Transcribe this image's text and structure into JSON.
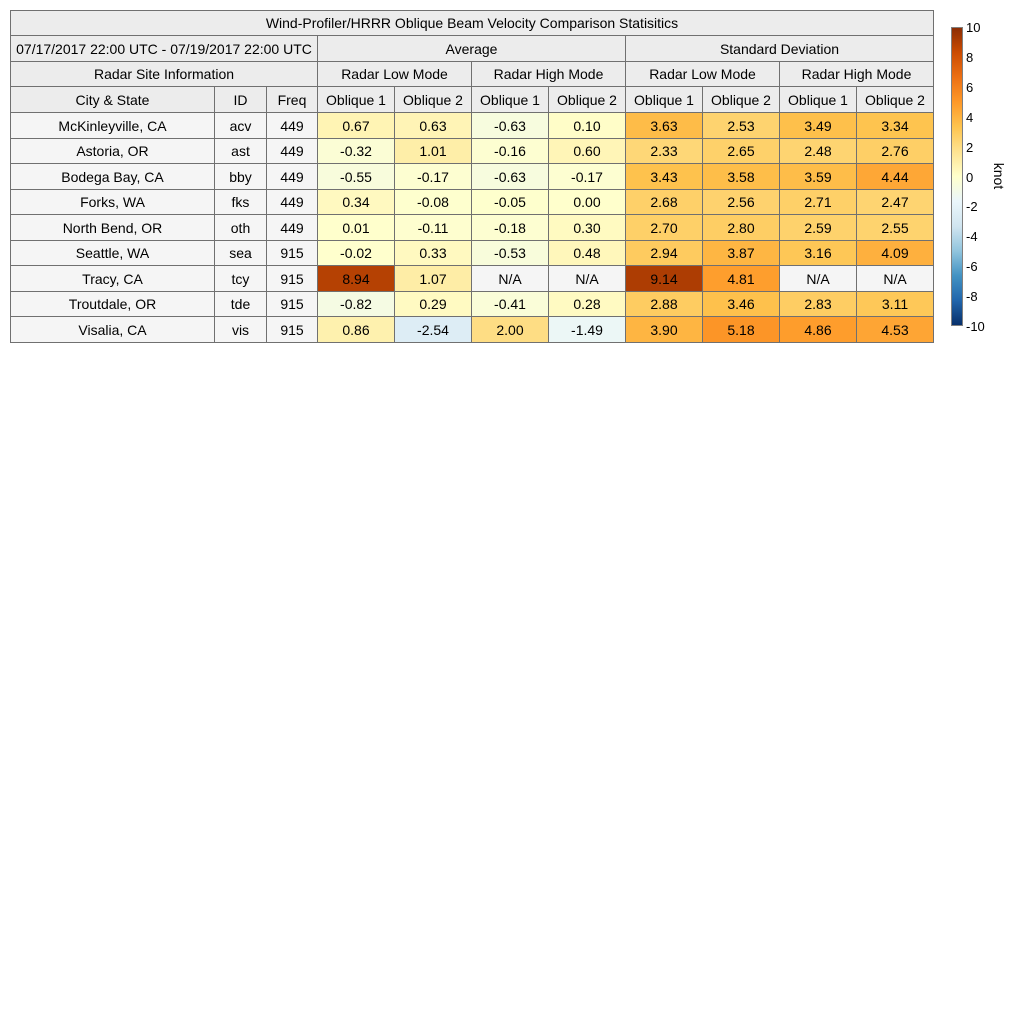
{
  "chart_data": {
    "type": "table",
    "title": "Wind-Profiler/HRRR Oblique Beam Velocity Comparison Statisitics",
    "date_range": "07/17/2017 22:00 UTC - 07/19/2017 22:00 UTC",
    "group_headers": {
      "average": "Average",
      "stdev": "Standard Deviation"
    },
    "info_header": "Radar Site Information",
    "mode_headers": [
      "Radar Low Mode",
      "Radar High Mode",
      "Radar Low Mode",
      "Radar High Mode"
    ],
    "column_headers": [
      "City & State",
      "ID",
      "Freq",
      "Oblique 1",
      "Oblique 2",
      "Oblique 1",
      "Oblique 2",
      "Oblique 1",
      "Oblique 2",
      "Oblique 1",
      "Oblique 2"
    ],
    "rows": [
      {
        "city": "McKinleyville, CA",
        "id": "acv",
        "freq": "449",
        "values": [
          "0.67",
          "0.63",
          "-0.63",
          "0.10",
          "3.63",
          "2.53",
          "3.49",
          "3.34"
        ]
      },
      {
        "city": "Astoria, OR",
        "id": "ast",
        "freq": "449",
        "values": [
          "-0.32",
          "1.01",
          "-0.16",
          "0.60",
          "2.33",
          "2.65",
          "2.48",
          "2.76"
        ]
      },
      {
        "city": "Bodega Bay, CA",
        "id": "bby",
        "freq": "449",
        "values": [
          "-0.55",
          "-0.17",
          "-0.63",
          "-0.17",
          "3.43",
          "3.58",
          "3.59",
          "4.44"
        ]
      },
      {
        "city": "Forks, WA",
        "id": "fks",
        "freq": "449",
        "values": [
          "0.34",
          "-0.08",
          "-0.05",
          "0.00",
          "2.68",
          "2.56",
          "2.71",
          "2.47"
        ]
      },
      {
        "city": "North Bend, OR",
        "id": "oth",
        "freq": "449",
        "values": [
          "0.01",
          "-0.11",
          "-0.18",
          "0.30",
          "2.70",
          "2.80",
          "2.59",
          "2.55"
        ]
      },
      {
        "city": "Seattle, WA",
        "id": "sea",
        "freq": "915",
        "values": [
          "-0.02",
          "0.33",
          "-0.53",
          "0.48",
          "2.94",
          "3.87",
          "3.16",
          "4.09"
        ]
      },
      {
        "city": "Tracy, CA",
        "id": "tcy",
        "freq": "915",
        "values": [
          "8.94",
          "1.07",
          "N/A",
          "N/A",
          "9.14",
          "4.81",
          "N/A",
          "N/A"
        ]
      },
      {
        "city": "Troutdale, OR",
        "id": "tde",
        "freq": "915",
        "values": [
          "-0.82",
          "0.29",
          "-0.41",
          "0.28",
          "2.88",
          "3.46",
          "2.83",
          "3.11"
        ]
      },
      {
        "city": "Visalia, CA",
        "id": "vis",
        "freq": "915",
        "values": [
          "0.86",
          "-2.54",
          "2.00",
          "-1.49",
          "3.90",
          "5.18",
          "4.86",
          "4.53"
        ]
      }
    ],
    "colorbar": {
      "unit": "knot",
      "range": [
        -10,
        10
      ],
      "ticks": [
        "10",
        "8",
        "6",
        "4",
        "2",
        "0",
        "-2",
        "-4",
        "-6",
        "-8",
        "-10"
      ],
      "stops": [
        "#08306b",
        "#2166ac",
        "#4393c3",
        "#92c5de",
        "#d1e5f0",
        "#eaf6fb",
        "#ffffcc",
        "#fee391",
        "#fec44f",
        "#fe9929",
        "#ec7014",
        "#cc4c02",
        "#8c2d04"
      ]
    }
  }
}
